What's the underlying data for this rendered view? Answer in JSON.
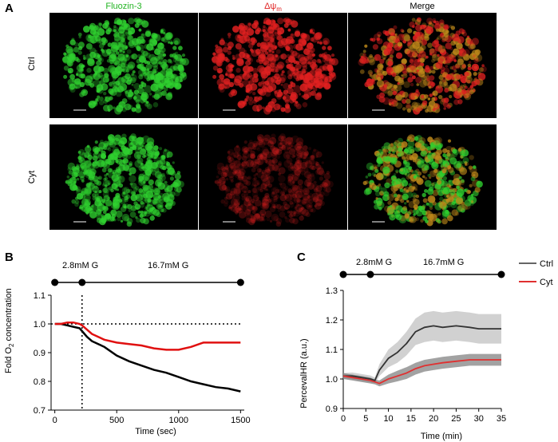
{
  "panel_a": {
    "letter": "A",
    "columns": [
      "Fluozin-3",
      "Δψm",
      "Merge"
    ],
    "rows": [
      "Ctrl",
      "Cyt"
    ],
    "colors": {
      "green": "#2fd02f",
      "red": "#e02020",
      "merge": "#c08a1a"
    }
  },
  "panel_b": {
    "letter": "B",
    "protocol": {
      "low": "2.8mM G",
      "high": "16.7mM G"
    }
  },
  "panel_c": {
    "letter": "C",
    "protocol": {
      "low": "2.8mM G",
      "high": "16.7mM G"
    }
  },
  "chart_data": [
    {
      "type": "line",
      "xlabel": "Time (sec)",
      "ylabel": "Fold O2 concentration",
      "xlim": [
        -30,
        1530
      ],
      "ylim": [
        0.7,
        1.1
      ],
      "xticks": [
        0,
        500,
        1000,
        1500
      ],
      "yticks": [
        0.7,
        0.8,
        0.9,
        1.0,
        1.1
      ],
      "reference_line_y": 1.0,
      "reference_line_x": 220,
      "series": [
        {
          "color": "#000000",
          "x": [
            0,
            50,
            100,
            150,
            200,
            220,
            260,
            300,
            400,
            500,
            600,
            700,
            800,
            900,
            1000,
            1100,
            1200,
            1300,
            1400,
            1500
          ],
          "y": [
            1.0,
            1.0,
            0.995,
            0.99,
            0.985,
            0.975,
            0.955,
            0.94,
            0.92,
            0.89,
            0.87,
            0.855,
            0.84,
            0.83,
            0.815,
            0.8,
            0.79,
            0.78,
            0.775,
            0.765
          ]
        },
        {
          "color": "#e01010",
          "x": [
            0,
            50,
            100,
            150,
            200,
            220,
            260,
            300,
            400,
            500,
            600,
            700,
            800,
            900,
            1000,
            1100,
            1200,
            1300,
            1400,
            1500
          ],
          "y": [
            1.0,
            1.0,
            1.005,
            1.005,
            1.0,
            0.995,
            0.98,
            0.965,
            0.945,
            0.935,
            0.93,
            0.925,
            0.915,
            0.91,
            0.91,
            0.92,
            0.935,
            0.935,
            0.935,
            0.935
          ]
        }
      ]
    },
    {
      "type": "line",
      "xlabel": "Time (min)",
      "ylabel": "PercevalHR (a.u.)",
      "xlim": [
        0,
        35
      ],
      "ylim": [
        0.9,
        1.3
      ],
      "xticks": [
        0,
        5,
        10,
        15,
        20,
        25,
        30,
        35
      ],
      "yticks": [
        0.9,
        1.0,
        1.1,
        1.2,
        1.3
      ],
      "series": [
        {
          "name": "Ctrl",
          "color": "#333333",
          "band_color": "#bdbdbd",
          "x": [
            0,
            2,
            4,
            6,
            7,
            8,
            10,
            12,
            14,
            16,
            18,
            20,
            22,
            25,
            28,
            30,
            33,
            35
          ],
          "y": [
            1.01,
            1.01,
            1.005,
            1.0,
            0.995,
            1.03,
            1.07,
            1.09,
            1.12,
            1.16,
            1.175,
            1.18,
            1.175,
            1.18,
            1.175,
            1.17,
            1.17,
            1.17
          ],
          "err": [
            0.01,
            0.012,
            0.012,
            0.012,
            0.01,
            0.02,
            0.03,
            0.035,
            0.04,
            0.045,
            0.05,
            0.05,
            0.05,
            0.05,
            0.05,
            0.05,
            0.05,
            0.05
          ]
        },
        {
          "name": "Cyt",
          "color": "#e03030",
          "band_color": "#7a7a7a",
          "x": [
            0,
            2,
            4,
            6,
            7,
            8,
            10,
            12,
            14,
            16,
            18,
            20,
            22,
            25,
            28,
            30,
            33,
            35
          ],
          "y": [
            1.01,
            1.005,
            1.0,
            0.995,
            0.99,
            0.985,
            1.0,
            1.01,
            1.02,
            1.035,
            1.045,
            1.05,
            1.055,
            1.06,
            1.065,
            1.065,
            1.065,
            1.065
          ],
          "err": [
            0.01,
            0.01,
            0.01,
            0.01,
            0.008,
            0.01,
            0.015,
            0.018,
            0.02,
            0.02,
            0.02,
            0.02,
            0.02,
            0.02,
            0.02,
            0.02,
            0.02,
            0.02
          ]
        }
      ]
    }
  ]
}
